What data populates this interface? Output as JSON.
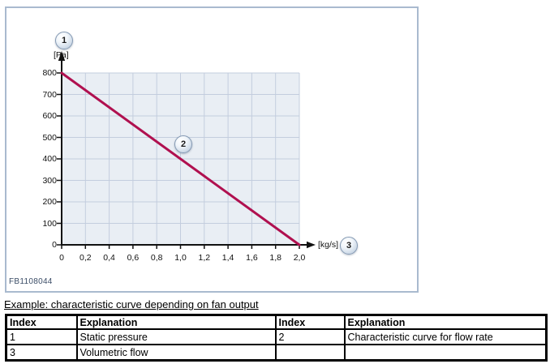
{
  "figure": {
    "code": "FB1108044",
    "callouts": [
      "1",
      "2",
      "3"
    ],
    "y_unit_label": "[Pa]",
    "x_unit_label": "[kg/s]"
  },
  "chart_data": {
    "type": "line",
    "title": "",
    "xlabel": "[kg/s]",
    "ylabel": "[Pa]",
    "xlim": [
      0,
      2.0
    ],
    "ylim": [
      0,
      800
    ],
    "grid": true,
    "x_ticks": [
      "0",
      "0,2",
      "0,4",
      "0,6",
      "0,8",
      "1,0",
      "1,2",
      "1,4",
      "1,6",
      "1,8",
      "2,0"
    ],
    "x_tick_values": [
      0,
      0.2,
      0.4,
      0.6,
      0.8,
      1.0,
      1.2,
      1.4,
      1.6,
      1.8,
      2.0
    ],
    "y_ticks": [
      "800",
      "700",
      "600",
      "500",
      "400",
      "300",
      "200",
      "100",
      "0"
    ],
    "y_tick_values": [
      800,
      700,
      600,
      500,
      400,
      300,
      200,
      100,
      0
    ],
    "series": [
      {
        "name": "Characteristic curve for flow rate",
        "color": "#b0104f",
        "points": [
          [
            0,
            800
          ],
          [
            2.0,
            0
          ]
        ]
      }
    ]
  },
  "caption": "Example: characteristic curve depending on fan output",
  "table": {
    "headers": [
      "Index",
      "Explanation",
      "Index",
      "Explanation"
    ],
    "rows": [
      [
        "1",
        "Static pressure",
        "2",
        "Characteristic curve for flow rate"
      ],
      [
        "3",
        "Volumetric flow",
        "",
        ""
      ]
    ]
  },
  "colors": {
    "curve": "#b0104f",
    "plot_background": "#e9eef4",
    "grid_line": "#c3cdde",
    "axis": "#111111",
    "figure_border": "#a9bacf",
    "figure_code_text": "#3a4c66"
  }
}
